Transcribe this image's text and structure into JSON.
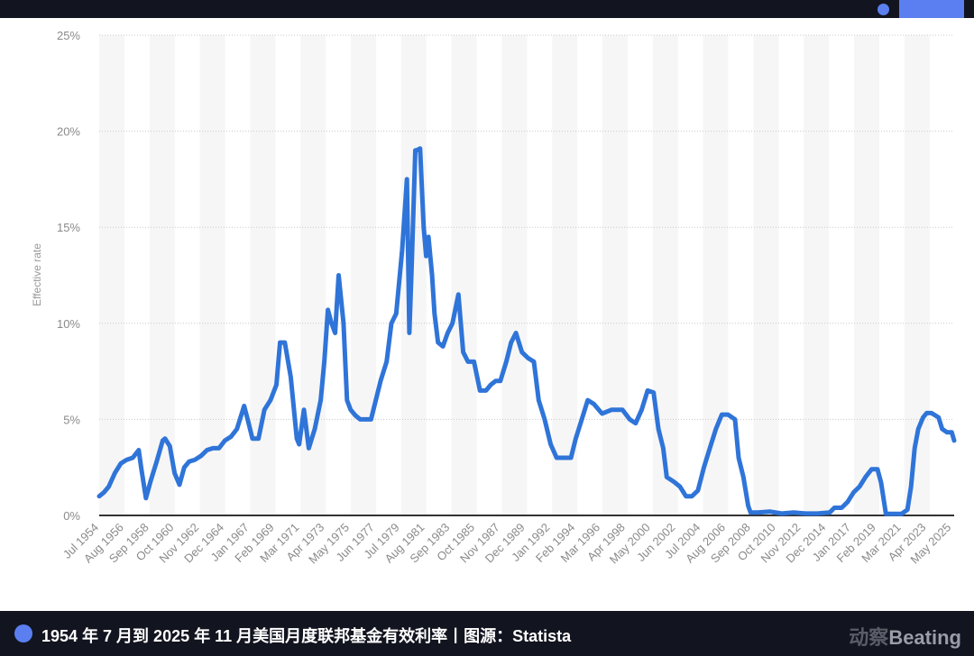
{
  "header": {
    "indicator_color": "#5b7ff0"
  },
  "footer": {
    "caption": "1954 年 7 月到 2025 年 11 月美国月度联邦基金有效利率丨图源：Statista",
    "brand_cn": "动察",
    "brand_en": "Beating"
  },
  "colors": {
    "line": "#2f74d8",
    "axis": "#333333",
    "grid": "#c8c8c8",
    "stripe": "#f6f6f6",
    "bar": "#12141f",
    "accent": "#5b7ff0"
  },
  "chart_data": {
    "type": "line",
    "title": "",
    "xlabel": "",
    "ylabel": "Effective rate",
    "ylim": [
      0,
      25
    ],
    "yticks": [
      "0%",
      "5%",
      "10%",
      "15%",
      "20%",
      "25%"
    ],
    "grid": true,
    "legend": "none",
    "categories": [
      "Jul 1954",
      "Aug 1956",
      "Sep 1958",
      "Oct 1960",
      "Nov 1962",
      "Dec 1964",
      "Jan 1967",
      "Feb 1969",
      "Mar 1971",
      "Apr 1973",
      "May 1975",
      "Jun 1977",
      "Jul 1979",
      "Aug 1981",
      "Sep 1983",
      "Oct 1985",
      "Nov 1987",
      "Dec 1989",
      "Jan 1992",
      "Feb 1994",
      "Mar 1996",
      "Apr 1998",
      "May 2000",
      "Jun 2002",
      "Jul 2004",
      "Aug 2006",
      "Sep 2008",
      "Oct 2010",
      "Nov 2012",
      "Dec 2014",
      "Jan 2017",
      "Feb 2019",
      "Mar 2021",
      "Apr 2023",
      "May 2025"
    ],
    "series": [
      {
        "name": "Federal funds effective rate (%)",
        "x": [
          1954.5,
          1954.9,
          1955.3,
          1955.8,
          1956.3,
          1956.8,
          1957.3,
          1957.8,
          1958.0,
          1958.4,
          1958.8,
          1959.3,
          1959.8,
          1960.0,
          1960.4,
          1960.8,
          1961.2,
          1961.6,
          1962.0,
          1962.5,
          1963.0,
          1963.5,
          1964.0,
          1964.5,
          1965.0,
          1965.5,
          1966.0,
          1966.6,
          1966.9,
          1967.3,
          1967.8,
          1968.3,
          1968.8,
          1969.3,
          1969.6,
          1970.0,
          1970.5,
          1971.0,
          1971.2,
          1971.6,
          1972.0,
          1972.5,
          1973.0,
          1973.3,
          1973.6,
          1973.9,
          1974.2,
          1974.5,
          1974.9,
          1975.2,
          1975.5,
          1975.9,
          1976.3,
          1976.8,
          1977.2,
          1977.6,
          1978.0,
          1978.5,
          1978.9,
          1979.3,
          1979.8,
          1980.2,
          1980.4,
          1980.6,
          1980.9,
          1981.0,
          1981.3,
          1981.6,
          1981.8,
          1982.0,
          1982.3,
          1982.5,
          1982.8,
          1983.2,
          1983.6,
          1984.0,
          1984.5,
          1984.9,
          1985.3,
          1985.8,
          1986.3,
          1986.8,
          1987.2,
          1987.6,
          1988.0,
          1988.5,
          1988.9,
          1989.3,
          1989.8,
          1990.3,
          1990.8,
          1991.2,
          1991.7,
          1992.2,
          1992.7,
          1993.3,
          1993.9,
          1994.3,
          1994.8,
          1995.3,
          1995.8,
          1996.5,
          1997.3,
          1998.2,
          1998.8,
          1999.3,
          1999.8,
          2000.3,
          2000.8,
          2001.2,
          2001.6,
          2001.9,
          2002.5,
          2003.0,
          2003.5,
          2004.0,
          2004.5,
          2005.0,
          2005.5,
          2006.0,
          2006.5,
          2007.0,
          2007.6,
          2007.9,
          2008.3,
          2008.7,
          2008.9,
          2009.5,
          2010.5,
          2011.5,
          2012.5,
          2013.5,
          2014.5,
          2015.5,
          2015.9,
          2016.5,
          2017.0,
          2017.5,
          2018.0,
          2018.5,
          2019.0,
          2019.5,
          2019.8,
          2020.2,
          2020.5,
          2021.5,
          2022.0,
          2022.3,
          2022.6,
          2022.9,
          2023.3,
          2023.6,
          2024.0,
          2024.6,
          2024.9,
          2025.3,
          2025.7,
          2025.9
        ],
        "values": [
          1.0,
          1.2,
          1.5,
          2.2,
          2.7,
          2.9,
          3.0,
          3.4,
          2.5,
          0.9,
          1.8,
          2.8,
          3.9,
          4.0,
          3.6,
          2.2,
          1.6,
          2.5,
          2.8,
          2.9,
          3.1,
          3.4,
          3.5,
          3.5,
          3.9,
          4.1,
          4.5,
          5.7,
          5.0,
          4.0,
          4.0,
          5.5,
          6.0,
          6.8,
          9.0,
          9.0,
          7.2,
          4.0,
          3.7,
          5.5,
          3.5,
          4.5,
          6.0,
          8.0,
          10.7,
          10.0,
          9.5,
          12.5,
          10.0,
          6.0,
          5.5,
          5.2,
          5.0,
          5.0,
          5.0,
          6.0,
          7.0,
          8.0,
          10.0,
          10.5,
          13.8,
          17.5,
          9.5,
          13.0,
          19.0,
          19.0,
          19.1,
          15.0,
          13.5,
          14.5,
          12.5,
          10.5,
          9.0,
          8.8,
          9.5,
          10.0,
          11.5,
          8.5,
          8.0,
          8.0,
          6.5,
          6.5,
          6.8,
          7.0,
          7.0,
          8.0,
          9.0,
          9.5,
          8.5,
          8.2,
          8.0,
          6.0,
          5.0,
          3.7,
          3.0,
          3.0,
          3.0,
          4.0,
          5.0,
          6.0,
          5.8,
          5.3,
          5.5,
          5.5,
          5.0,
          4.8,
          5.5,
          6.5,
          6.4,
          4.5,
          3.5,
          2.0,
          1.75,
          1.5,
          1.0,
          1.0,
          1.3,
          2.5,
          3.5,
          4.5,
          5.25,
          5.25,
          5.0,
          3.0,
          2.0,
          0.5,
          0.15,
          0.15,
          0.2,
          0.1,
          0.15,
          0.1,
          0.1,
          0.15,
          0.4,
          0.4,
          0.7,
          1.2,
          1.5,
          2.0,
          2.4,
          2.4,
          1.7,
          0.08,
          0.08,
          0.08,
          0.3,
          1.5,
          3.5,
          4.5,
          5.1,
          5.33,
          5.33,
          5.1,
          4.5,
          4.33,
          4.33,
          3.9
        ]
      }
    ]
  }
}
